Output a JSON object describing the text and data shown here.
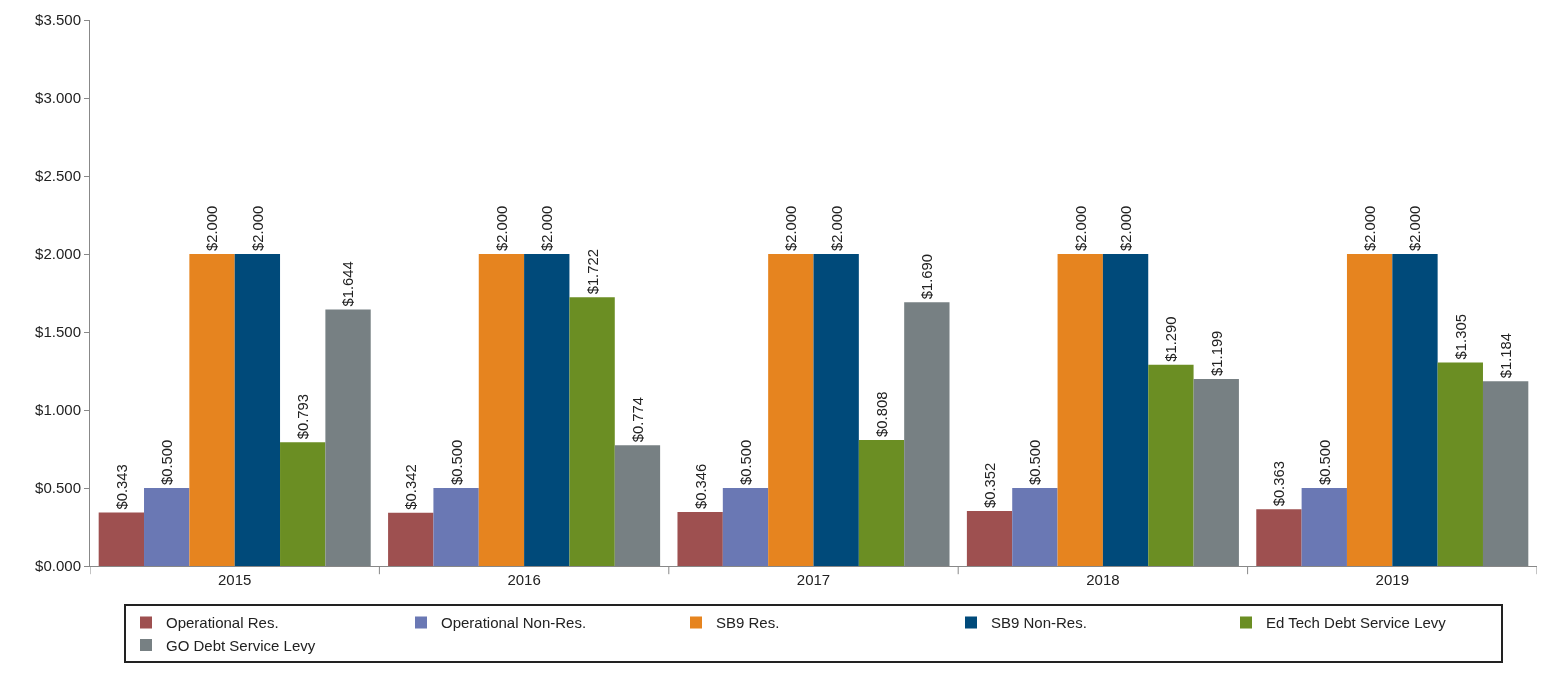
{
  "chart_data": {
    "type": "bar",
    "categories": [
      "2015",
      "2016",
      "2017",
      "2018",
      "2019"
    ],
    "ylim": [
      0,
      3.5
    ],
    "yticks": [
      {
        "value": 0,
        "label": "$0.000"
      },
      {
        "value": 0.5,
        "label": "$0.500"
      },
      {
        "value": 1,
        "label": "$1.000"
      },
      {
        "value": 1.5,
        "label": "$1.500"
      },
      {
        "value": 2,
        "label": "$2.000"
      },
      {
        "value": 2.5,
        "label": "$2.500"
      },
      {
        "value": 3,
        "label": "$3.000"
      },
      {
        "value": 3.5,
        "label": "$3.500"
      }
    ],
    "grid": false,
    "legend": "bottom",
    "series": [
      {
        "name": "Operational Res.",
        "color": "#9e5050",
        "values": [
          0.343,
          0.342,
          0.346,
          0.352,
          0.363
        ],
        "value_labels": [
          "$0.343",
          "$0.342",
          "$0.346",
          "$0.352",
          "$0.363"
        ]
      },
      {
        "name": "Operational Non-Res.",
        "color": "#6a78b4",
        "values": [
          0.5,
          0.5,
          0.5,
          0.5,
          0.5
        ],
        "value_labels": [
          "$0.500",
          "$0.500",
          "$0.500",
          "$0.500",
          "$0.500"
        ]
      },
      {
        "name": "SB9 Res.",
        "color": "#e6841f",
        "values": [
          2,
          2,
          2,
          2,
          2
        ],
        "value_labels": [
          "$2.000",
          "$2.000",
          "$2.000",
          "$2.000",
          "$2.000"
        ]
      },
      {
        "name": "SB9 Non-Res.",
        "color": "#004a7a",
        "values": [
          2,
          2,
          2,
          2,
          2
        ],
        "value_labels": [
          "$2.000",
          "$2.000",
          "$2.000",
          "$2.000",
          "$2.000"
        ]
      },
      {
        "name": "Ed Tech Debt Service Levy",
        "color": "#6b8e23",
        "values": [
          0.793,
          1.722,
          0.808,
          1.29,
          1.305
        ],
        "value_labels": [
          "$0.793",
          "$1.722",
          "$0.808",
          "$1.290",
          "$1.305"
        ]
      },
      {
        "name": "GO Debt Service Levy",
        "color": "#778083",
        "values": [
          1.644,
          0.774,
          1.69,
          1.199,
          1.184
        ],
        "value_labels": [
          "$1.644",
          "$0.774",
          "$1.690",
          "$1.199",
          "$1.184"
        ]
      }
    ]
  }
}
